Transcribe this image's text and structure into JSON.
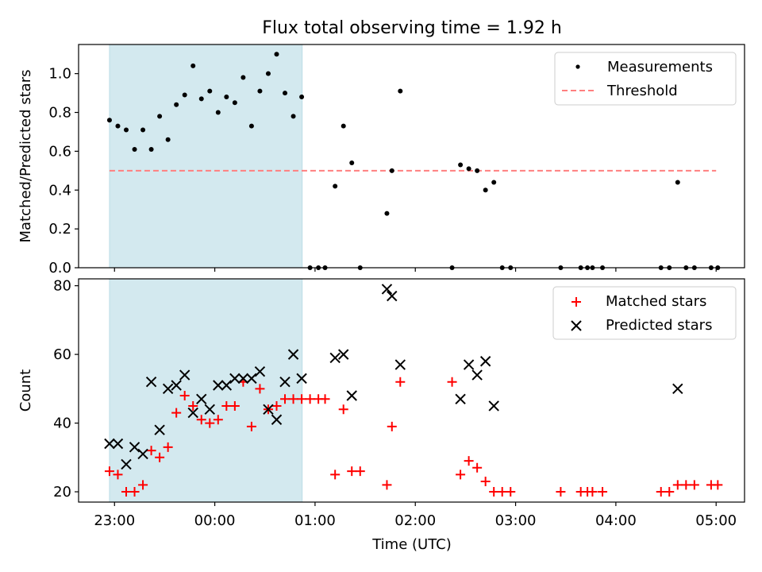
{
  "chart_data": {
    "title": "Flux total observing time = 1.92 h",
    "xlabel": "Time (UTC)",
    "x_ticks": [
      {
        "t": 0,
        "label": "23:00"
      },
      {
        "t": 60,
        "label": "00:00"
      },
      {
        "t": 120,
        "label": "01:00"
      },
      {
        "t": 180,
        "label": "02:00"
      },
      {
        "t": 240,
        "label": "03:00"
      },
      {
        "t": 300,
        "label": "04:00"
      },
      {
        "t": 360,
        "label": "05:00"
      }
    ],
    "x_units": "minutes since 23:00 UTC",
    "xlim": [
      -21.5,
      377
    ],
    "shaded_region": {
      "start": -3,
      "end": 112.3,
      "color": "#d3e9ef"
    },
    "colors": {
      "measurement": "#000000",
      "threshold": "#ff7f7f",
      "matched": "#ff0000",
      "predicted": "#000000"
    },
    "panels": [
      {
        "type": "scatter",
        "ylabel": "Matched/Predicted stars",
        "ylim": [
          0,
          1.15
        ],
        "y_ticks": [
          "0.0",
          "0.2",
          "0.4",
          "0.6",
          "0.8",
          "1.0"
        ],
        "legend": [
          "Measurements",
          "Threshold"
        ],
        "threshold": {
          "value": 0.5,
          "x_start": -3,
          "x_end": 360
        },
        "measurements": [
          [
            -3,
            0.76
          ],
          [
            2,
            0.73
          ],
          [
            7,
            0.71
          ],
          [
            12,
            0.61
          ],
          [
            17,
            0.71
          ],
          [
            22,
            0.61
          ],
          [
            27,
            0.78
          ],
          [
            32,
            0.66
          ],
          [
            37,
            0.84
          ],
          [
            42,
            0.89
          ],
          [
            47,
            1.04
          ],
          [
            52,
            0.87
          ],
          [
            57,
            0.91
          ],
          [
            62,
            0.8
          ],
          [
            67,
            0.88
          ],
          [
            72,
            0.85
          ],
          [
            77,
            0.98
          ],
          [
            82,
            0.73
          ],
          [
            87,
            0.91
          ],
          [
            92,
            1.0
          ],
          [
            97,
            1.1
          ],
          [
            102,
            0.9
          ],
          [
            107,
            0.78
          ],
          [
            112,
            0.88
          ],
          [
            117,
            0.0
          ],
          [
            122,
            0.0
          ],
          [
            126,
            0.0
          ],
          [
            132,
            0.42
          ],
          [
            137,
            0.73
          ],
          [
            142,
            0.54
          ],
          [
            147,
            0.0
          ],
          [
            163,
            0.28
          ],
          [
            166,
            0.5
          ],
          [
            171,
            0.91
          ],
          [
            202,
            0.0
          ],
          [
            207,
            0.53
          ],
          [
            212,
            0.51
          ],
          [
            217,
            0.5
          ],
          [
            222,
            0.4
          ],
          [
            227,
            0.44
          ],
          [
            232,
            0.0
          ],
          [
            237,
            0.0
          ],
          [
            267,
            0.0
          ],
          [
            279,
            0.0
          ],
          [
            283,
            0.0
          ],
          [
            286,
            0.0
          ],
          [
            292,
            0.0
          ],
          [
            327,
            0.0
          ],
          [
            332,
            0.0
          ],
          [
            337,
            0.44
          ],
          [
            342,
            0.0
          ],
          [
            347,
            0.0
          ],
          [
            357,
            0.0
          ],
          [
            361,
            0.0
          ]
        ]
      },
      {
        "type": "scatter",
        "ylabel": "Count",
        "ylim": [
          17,
          82
        ],
        "y_ticks": [
          "20",
          "40",
          "60",
          "80"
        ],
        "legend": [
          "Matched stars",
          "Predicted stars"
        ],
        "matched": [
          [
            -3,
            26
          ],
          [
            2,
            25
          ],
          [
            7,
            20
          ],
          [
            12,
            20
          ],
          [
            17,
            22
          ],
          [
            22,
            32
          ],
          [
            27,
            30
          ],
          [
            32,
            33
          ],
          [
            37,
            43
          ],
          [
            42,
            48
          ],
          [
            47,
            45
          ],
          [
            52,
            41
          ],
          [
            57,
            40
          ],
          [
            62,
            41
          ],
          [
            67,
            45
          ],
          [
            72,
            45
          ],
          [
            77,
            52
          ],
          [
            82,
            39
          ],
          [
            87,
            50
          ],
          [
            92,
            44
          ],
          [
            97,
            45
          ],
          [
            102,
            47
          ],
          [
            107,
            47
          ],
          [
            112,
            47
          ],
          [
            117,
            47
          ],
          [
            122,
            47
          ],
          [
            126,
            47
          ],
          [
            132,
            25
          ],
          [
            137,
            44
          ],
          [
            142,
            26
          ],
          [
            147,
            26
          ],
          [
            163,
            22
          ],
          [
            166,
            39
          ],
          [
            171,
            52
          ],
          [
            202,
            52
          ],
          [
            207,
            25
          ],
          [
            212,
            29
          ],
          [
            217,
            27
          ],
          [
            222,
            23
          ],
          [
            227,
            20
          ],
          [
            232,
            20
          ],
          [
            237,
            20
          ],
          [
            267,
            20
          ],
          [
            279,
            20
          ],
          [
            283,
            20
          ],
          [
            286,
            20
          ],
          [
            292,
            20
          ],
          [
            327,
            20
          ],
          [
            332,
            20
          ],
          [
            337,
            22
          ],
          [
            342,
            22
          ],
          [
            347,
            22
          ],
          [
            357,
            22
          ],
          [
            361,
            22
          ]
        ],
        "predicted": [
          [
            -3,
            34
          ],
          [
            2,
            34
          ],
          [
            7,
            28
          ],
          [
            12,
            33
          ],
          [
            17,
            31
          ],
          [
            22,
            52
          ],
          [
            27,
            38
          ],
          [
            32,
            50
          ],
          [
            37,
            51
          ],
          [
            42,
            54
          ],
          [
            47,
            43
          ],
          [
            52,
            47
          ],
          [
            57,
            44
          ],
          [
            62,
            51
          ],
          [
            67,
            51
          ],
          [
            72,
            53
          ],
          [
            77,
            53
          ],
          [
            82,
            53
          ],
          [
            87,
            55
          ],
          [
            92,
            44
          ],
          [
            97,
            41
          ],
          [
            102,
            52
          ],
          [
            107,
            60
          ],
          [
            112,
            53
          ],
          [
            132,
            59
          ],
          [
            137,
            60
          ],
          [
            142,
            48
          ],
          [
            163,
            79
          ],
          [
            166,
            77
          ],
          [
            171,
            57
          ],
          [
            207,
            47
          ],
          [
            212,
            57
          ],
          [
            217,
            54
          ],
          [
            222,
            58
          ],
          [
            227,
            45
          ],
          [
            337,
            50
          ]
        ]
      }
    ]
  }
}
